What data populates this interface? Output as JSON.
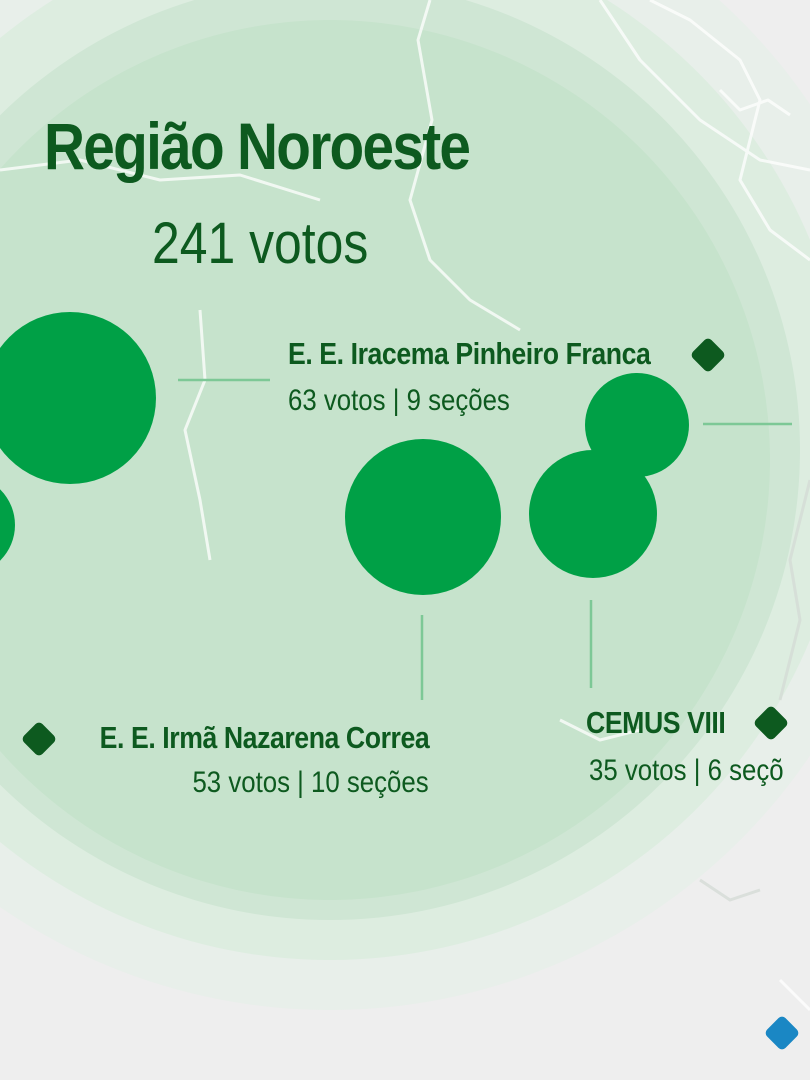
{
  "region": {
    "title": "Região Noroeste",
    "votes": "241 votos"
  },
  "schools": [
    {
      "name": "E. E. Iracema Pinheiro Franca",
      "stats": "63 votos | 9 seções"
    },
    {
      "name": "E. E. Irmã Nazarena Correa",
      "stats": "53 votos | 10 seções"
    },
    {
      "name": "CEMUS VIII",
      "stats": "35 votos | 6 seçõ"
    }
  ],
  "colors": {
    "background": "#eeeeee",
    "region_fill": "#c6e3cc",
    "bubble": "#00a046",
    "text": "#0d5a1f",
    "marker": "#0d5a1f",
    "leader_line": "#7dc896",
    "corner_marker": "#1a87c4"
  },
  "icons": {
    "school_marker": "diamond-icon",
    "corner_marker": "diamond-icon"
  }
}
